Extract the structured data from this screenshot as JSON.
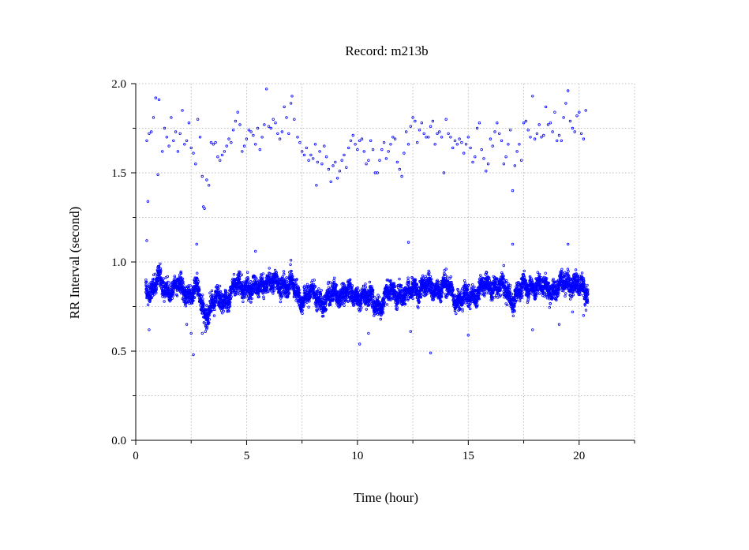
{
  "chart_data": {
    "type": "scatter",
    "title": "Record:  m213b",
    "xlabel": "Time (hour)",
    "ylabel": "RR Interval (second)",
    "xlim": [
      0,
      22.5
    ],
    "ylim": [
      0,
      2.0
    ],
    "x_ticks": [
      0,
      5,
      10,
      15,
      20
    ],
    "x_tick_labels": [
      "0",
      "5",
      "10",
      "15",
      "20"
    ],
    "x_minor_ticks": [
      2.5,
      7.5,
      12.5,
      17.5,
      22.5
    ],
    "y_ticks": [
      0,
      0.5,
      1.0,
      1.5,
      2.0
    ],
    "y_tick_labels": [
      "0.0",
      "0.5",
      "1.0",
      "1.5",
      "2.0"
    ],
    "y_minor_ticks": [
      0.25,
      0.75,
      1.25,
      1.75
    ],
    "grid": true,
    "marker": "circle",
    "series_color": "#0000ff",
    "series": [
      {
        "values_description_excluded": true,
        "time_range": [
          0.45,
          20.4
        ],
        "baseline_profile": [
          [
            0.45,
            0.86
          ],
          [
            0.7,
            0.84
          ],
          [
            1.0,
            0.9
          ],
          [
            1.3,
            0.85
          ],
          [
            1.6,
            0.86
          ],
          [
            2.0,
            0.85
          ],
          [
            2.4,
            0.83
          ],
          [
            2.8,
            0.84
          ],
          [
            3.1,
            0.7
          ],
          [
            3.4,
            0.76
          ],
          [
            3.8,
            0.79
          ],
          [
            4.2,
            0.81
          ],
          [
            4.6,
            0.86
          ],
          [
            5.0,
            0.87
          ],
          [
            5.4,
            0.83
          ],
          [
            5.8,
            0.9
          ],
          [
            6.2,
            0.87
          ],
          [
            6.6,
            0.88
          ],
          [
            7.0,
            0.87
          ],
          [
            7.4,
            0.8
          ],
          [
            7.8,
            0.82
          ],
          [
            8.2,
            0.8
          ],
          [
            8.6,
            0.78
          ],
          [
            9.0,
            0.82
          ],
          [
            9.4,
            0.84
          ],
          [
            9.8,
            0.8
          ],
          [
            10.2,
            0.82
          ],
          [
            10.6,
            0.78
          ],
          [
            11.0,
            0.76
          ],
          [
            11.4,
            0.82
          ],
          [
            11.8,
            0.84
          ],
          [
            12.2,
            0.8
          ],
          [
            12.6,
            0.86
          ],
          [
            13.0,
            0.85
          ],
          [
            13.4,
            0.86
          ],
          [
            13.8,
            0.85
          ],
          [
            14.2,
            0.85
          ],
          [
            14.6,
            0.78
          ],
          [
            15.0,
            0.8
          ],
          [
            15.4,
            0.84
          ],
          [
            15.8,
            0.86
          ],
          [
            16.2,
            0.88
          ],
          [
            16.6,
            0.84
          ],
          [
            17.0,
            0.8
          ],
          [
            17.4,
            0.84
          ],
          [
            17.8,
            0.88
          ],
          [
            18.2,
            0.85
          ],
          [
            18.6,
            0.86
          ],
          [
            19.0,
            0.84
          ],
          [
            19.4,
            0.9
          ],
          [
            19.8,
            0.88
          ],
          [
            20.1,
            0.85
          ],
          [
            20.4,
            0.84
          ]
        ],
        "upper_cluster_points": [
          [
            0.5,
            1.68
          ],
          [
            0.55,
            1.34
          ],
          [
            0.6,
            1.72
          ],
          [
            0.7,
            1.73
          ],
          [
            0.8,
            1.81
          ],
          [
            0.9,
            1.92
          ],
          [
            1.0,
            1.49
          ],
          [
            1.05,
            1.91
          ],
          [
            1.2,
            1.62
          ],
          [
            1.3,
            1.75
          ],
          [
            1.4,
            1.7
          ],
          [
            1.5,
            1.65
          ],
          [
            1.6,
            1.81
          ],
          [
            1.7,
            1.68
          ],
          [
            1.8,
            1.73
          ],
          [
            1.9,
            1.62
          ],
          [
            2.0,
            1.72
          ],
          [
            2.1,
            1.85
          ],
          [
            2.2,
            1.66
          ],
          [
            2.3,
            1.68
          ],
          [
            2.4,
            1.78
          ],
          [
            2.5,
            1.64
          ],
          [
            2.6,
            1.61
          ],
          [
            2.7,
            1.55
          ],
          [
            2.8,
            1.8
          ],
          [
            2.9,
            1.7
          ],
          [
            3.0,
            1.48
          ],
          [
            3.05,
            1.31
          ],
          [
            3.1,
            1.3
          ],
          [
            3.2,
            1.46
          ],
          [
            3.3,
            1.43
          ],
          [
            3.4,
            1.67
          ],
          [
            3.5,
            1.66
          ],
          [
            3.6,
            1.67
          ],
          [
            3.7,
            1.59
          ],
          [
            3.8,
            1.57
          ],
          [
            3.9,
            1.6
          ],
          [
            4.0,
            1.62
          ],
          [
            4.1,
            1.65
          ],
          [
            4.2,
            1.69
          ],
          [
            4.3,
            1.67
          ],
          [
            4.4,
            1.74
          ],
          [
            4.5,
            1.79
          ],
          [
            4.6,
            1.84
          ],
          [
            4.7,
            1.77
          ],
          [
            4.8,
            1.62
          ],
          [
            4.9,
            1.65
          ],
          [
            5.0,
            1.69
          ],
          [
            5.1,
            1.74
          ],
          [
            5.2,
            1.73
          ],
          [
            5.3,
            1.71
          ],
          [
            5.4,
            1.66
          ],
          [
            5.5,
            1.75
          ],
          [
            5.6,
            1.63
          ],
          [
            5.7,
            1.7
          ],
          [
            5.8,
            1.77
          ],
          [
            5.9,
            1.97
          ],
          [
            6.0,
            1.76
          ],
          [
            6.1,
            1.75
          ],
          [
            6.2,
            1.8
          ],
          [
            6.3,
            1.78
          ],
          [
            6.4,
            1.72
          ],
          [
            6.5,
            1.69
          ],
          [
            6.6,
            1.73
          ],
          [
            6.7,
            1.87
          ],
          [
            6.8,
            1.81
          ],
          [
            6.9,
            1.72
          ],
          [
            7.0,
            1.89
          ],
          [
            7.05,
            1.93
          ],
          [
            7.15,
            1.8
          ],
          [
            7.3,
            1.7
          ],
          [
            7.4,
            1.67
          ],
          [
            7.5,
            1.62
          ],
          [
            7.6,
            1.6
          ],
          [
            7.7,
            1.64
          ],
          [
            7.8,
            1.57
          ],
          [
            7.9,
            1.6
          ],
          [
            8.0,
            1.58
          ],
          [
            8.1,
            1.66
          ],
          [
            8.15,
            1.43
          ],
          [
            8.2,
            1.56
          ],
          [
            8.3,
            1.62
          ],
          [
            8.4,
            1.55
          ],
          [
            8.5,
            1.65
          ],
          [
            8.6,
            1.59
          ],
          [
            8.7,
            1.52
          ],
          [
            8.8,
            1.45
          ],
          [
            8.9,
            1.54
          ],
          [
            9.0,
            1.56
          ],
          [
            9.1,
            1.47
          ],
          [
            9.2,
            1.51
          ],
          [
            9.3,
            1.57
          ],
          [
            9.4,
            1.6
          ],
          [
            9.5,
            1.53
          ],
          [
            9.6,
            1.64
          ],
          [
            9.7,
            1.68
          ],
          [
            9.8,
            1.71
          ],
          [
            9.9,
            1.66
          ],
          [
            10.0,
            1.63
          ],
          [
            10.1,
            1.68
          ],
          [
            10.2,
            1.69
          ],
          [
            10.3,
            1.62
          ],
          [
            10.4,
            1.55
          ],
          [
            10.5,
            1.57
          ],
          [
            10.6,
            1.68
          ],
          [
            10.7,
            1.63
          ],
          [
            10.8,
            1.5
          ],
          [
            10.9,
            1.5
          ],
          [
            11.0,
            1.57
          ],
          [
            11.1,
            1.63
          ],
          [
            11.2,
            1.67
          ],
          [
            11.3,
            1.58
          ],
          [
            11.4,
            1.62
          ],
          [
            11.5,
            1.66
          ],
          [
            11.6,
            1.7
          ],
          [
            11.7,
            1.69
          ],
          [
            11.8,
            1.56
          ],
          [
            11.9,
            1.52
          ],
          [
            12.0,
            1.48
          ],
          [
            12.1,
            1.61
          ],
          [
            12.2,
            1.73
          ],
          [
            12.3,
            1.66
          ],
          [
            12.4,
            1.76
          ],
          [
            12.5,
            1.81
          ],
          [
            12.6,
            1.79
          ],
          [
            12.7,
            1.67
          ],
          [
            12.8,
            1.74
          ],
          [
            12.9,
            1.78
          ],
          [
            13.0,
            1.72
          ],
          [
            13.1,
            1.7
          ],
          [
            13.2,
            1.7
          ],
          [
            13.3,
            1.76
          ],
          [
            13.4,
            1.79
          ],
          [
            13.5,
            1.66
          ],
          [
            13.6,
            1.72
          ],
          [
            13.7,
            1.73
          ],
          [
            13.8,
            1.7
          ],
          [
            13.9,
            1.5
          ],
          [
            14.0,
            1.8
          ],
          [
            14.1,
            1.72
          ],
          [
            14.2,
            1.7
          ],
          [
            14.3,
            1.64
          ],
          [
            14.4,
            1.68
          ],
          [
            14.5,
            1.66
          ],
          [
            14.6,
            1.69
          ],
          [
            14.7,
            1.67
          ],
          [
            14.8,
            1.61
          ],
          [
            14.9,
            1.66
          ],
          [
            15.0,
            1.7
          ],
          [
            15.1,
            1.64
          ],
          [
            15.2,
            1.56
          ],
          [
            15.3,
            1.59
          ],
          [
            15.4,
            1.75
          ],
          [
            15.5,
            1.78
          ],
          [
            15.6,
            1.63
          ],
          [
            15.7,
            1.58
          ],
          [
            15.8,
            1.51
          ],
          [
            15.9,
            1.55
          ],
          [
            16.0,
            1.69
          ],
          [
            16.1,
            1.65
          ],
          [
            16.2,
            1.73
          ],
          [
            16.3,
            1.78
          ],
          [
            16.4,
            1.72
          ],
          [
            16.5,
            1.68
          ],
          [
            16.6,
            1.55
          ],
          [
            16.7,
            1.59
          ],
          [
            16.8,
            1.66
          ],
          [
            16.9,
            1.74
          ],
          [
            17.0,
            1.4
          ],
          [
            17.1,
            1.54
          ],
          [
            17.2,
            1.62
          ],
          [
            17.3,
            1.66
          ],
          [
            17.4,
            1.57
          ],
          [
            17.5,
            1.78
          ],
          [
            17.6,
            1.79
          ],
          [
            17.7,
            1.74
          ],
          [
            17.8,
            1.7
          ],
          [
            17.9,
            1.93
          ],
          [
            18.0,
            1.69
          ],
          [
            18.1,
            1.72
          ],
          [
            18.2,
            1.77
          ],
          [
            18.3,
            1.7
          ],
          [
            18.4,
            1.71
          ],
          [
            18.5,
            1.87
          ],
          [
            18.6,
            1.77
          ],
          [
            18.7,
            1.78
          ],
          [
            18.8,
            1.73
          ],
          [
            18.9,
            1.84
          ],
          [
            19.0,
            1.68
          ],
          [
            19.1,
            1.71
          ],
          [
            19.2,
            1.68
          ],
          [
            19.3,
            1.81
          ],
          [
            19.4,
            1.89
          ],
          [
            19.5,
            1.96
          ],
          [
            19.6,
            1.79
          ],
          [
            19.7,
            1.75
          ],
          [
            19.8,
            1.73
          ],
          [
            19.9,
            1.82
          ],
          [
            20.0,
            1.84
          ],
          [
            20.1,
            1.72
          ],
          [
            20.2,
            1.69
          ],
          [
            20.3,
            1.85
          ]
        ],
        "lower_outlier_points": [
          [
            0.5,
            1.12
          ],
          [
            0.6,
            0.62
          ],
          [
            1.1,
            0.99
          ],
          [
            2.3,
            0.65
          ],
          [
            2.5,
            0.6
          ],
          [
            2.6,
            0.48
          ],
          [
            2.75,
            1.1
          ],
          [
            3.0,
            0.6
          ],
          [
            5.4,
            1.06
          ],
          [
            7.0,
            1.01
          ],
          [
            10.1,
            0.54
          ],
          [
            10.5,
            0.6
          ],
          [
            12.3,
            1.11
          ],
          [
            12.4,
            0.61
          ],
          [
            13.3,
            0.49
          ],
          [
            14.0,
            0.96
          ],
          [
            15.0,
            0.59
          ],
          [
            16.6,
            0.98
          ],
          [
            17.0,
            1.1
          ],
          [
            17.9,
            0.62
          ],
          [
            19.1,
            0.65
          ],
          [
            19.5,
            1.1
          ],
          [
            19.7,
            0.72
          ],
          [
            20.2,
            0.7
          ]
        ],
        "spread": 0.055
      }
    ]
  }
}
